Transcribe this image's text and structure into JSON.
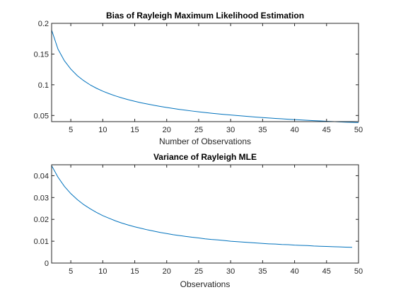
{
  "figure": {
    "background": "#ffffff"
  },
  "chart_data": [
    {
      "type": "line",
      "title": "Bias of Rayleigh Maximum Likelihood Estimation",
      "xlabel": "Number of Observations",
      "ylabel": "",
      "xlim": [
        2,
        50
      ],
      "ylim": [
        0.04,
        0.2
      ],
      "xticks": [
        5,
        10,
        15,
        20,
        25,
        30,
        35,
        40,
        45,
        50
      ],
      "yticks": [
        0.05,
        0.1,
        0.15,
        0.2
      ],
      "ytick_labels": [
        "0.05",
        "0.1",
        "0.15",
        "0.2"
      ],
      "grid": false,
      "series": [
        {
          "color": "#0072bd",
          "x": [
            2,
            3,
            4,
            5,
            6,
            7,
            8,
            9,
            10,
            11,
            12,
            13,
            14,
            15,
            16,
            17,
            18,
            19,
            20,
            21,
            22,
            23,
            24,
            25,
            26,
            27,
            28,
            29,
            30,
            31,
            32,
            33,
            34,
            35,
            36,
            37,
            38,
            39,
            40,
            41,
            42,
            43,
            44,
            45,
            46,
            47,
            48,
            49,
            50
          ],
          "values": [
            0.189,
            0.158,
            0.139,
            0.1255,
            0.115,
            0.1068,
            0.1,
            0.0944,
            0.0896,
            0.0855,
            0.0818,
            0.0786,
            0.0757,
            0.0731,
            0.0707,
            0.0686,
            0.0666,
            0.0647,
            0.063,
            0.0614,
            0.0599,
            0.0585,
            0.0572,
            0.056,
            0.0548,
            0.0537,
            0.0527,
            0.0517,
            0.0508,
            0.0499,
            0.049,
            0.0482,
            0.0474,
            0.0466,
            0.0459,
            0.0452,
            0.0446,
            0.0439,
            0.0433,
            0.0427,
            0.0422,
            0.0416,
            0.0411,
            0.0406,
            0.0401,
            0.0396,
            0.0392,
            0.0388,
            0.0384
          ]
        }
      ]
    },
    {
      "type": "line",
      "title": "Variance of Rayleigh MLE",
      "xlabel": "Observations",
      "ylabel": "",
      "xlim": [
        2,
        50
      ],
      "ylim": [
        0,
        0.045
      ],
      "xticks": [
        5,
        10,
        15,
        20,
        25,
        30,
        35,
        40,
        45,
        50
      ],
      "yticks": [
        0,
        0.01,
        0.02,
        0.03,
        0.04
      ],
      "ytick_labels": [
        "0",
        "0.01",
        "0.02",
        "0.03",
        "0.04"
      ],
      "grid": false,
      "series": [
        {
          "color": "#0072bd",
          "x": [
            2,
            3,
            4,
            5,
            6,
            7,
            8,
            9,
            10,
            11,
            12,
            13,
            14,
            15,
            16,
            17,
            18,
            19,
            20,
            21,
            22,
            23,
            24,
            25,
            26,
            27,
            28,
            29,
            30,
            31,
            32,
            33,
            34,
            35,
            36,
            37,
            38,
            39,
            40,
            41,
            42,
            43,
            44,
            45,
            46,
            47,
            48,
            49
          ],
          "values": [
            0.0446,
            0.0393,
            0.0351,
            0.0318,
            0.0291,
            0.0268,
            0.0249,
            0.0232,
            0.0217,
            0.0205,
            0.0193,
            0.0183,
            0.0174,
            0.0166,
            0.0159,
            0.0152,
            0.0146,
            0.014,
            0.0135,
            0.013,
            0.0126,
            0.0122,
            0.0118,
            0.0115,
            0.0111,
            0.0108,
            0.0106,
            0.0103,
            0.01,
            0.0098,
            0.0096,
            0.0094,
            0.0092,
            0.009,
            0.0088,
            0.0087,
            0.0085,
            0.0084,
            0.0082,
            0.0081,
            0.008,
            0.0078,
            0.0077,
            0.0076,
            0.0075,
            0.0074,
            0.0073,
            0.0072
          ]
        }
      ]
    }
  ]
}
